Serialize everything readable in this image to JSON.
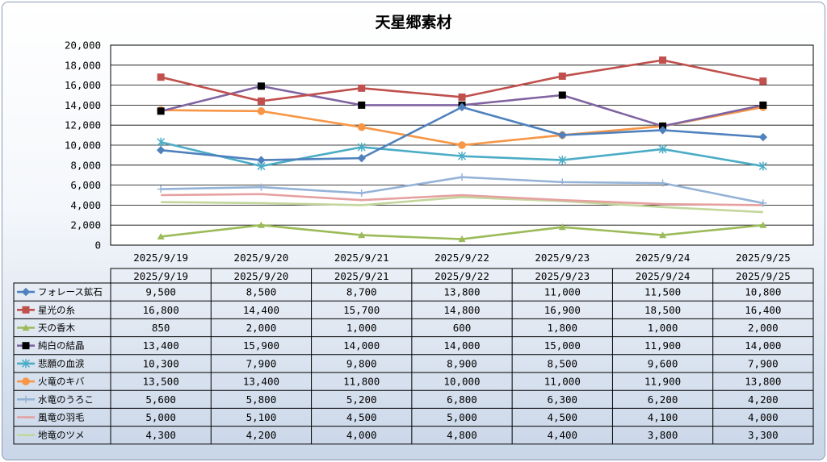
{
  "chart_data": {
    "type": "line",
    "title": "天星郷素材",
    "categories": [
      "2025/9/19",
      "2025/9/20",
      "2025/9/21",
      "2025/9/22",
      "2025/9/23",
      "2025/9/24",
      "2025/9/25"
    ],
    "ylim": [
      0,
      20000
    ],
    "yticks": [
      "0",
      "2,000",
      "4,000",
      "6,000",
      "8,000",
      "10,000",
      "12,000",
      "14,000",
      "16,000",
      "18,000",
      "20,000"
    ],
    "grid": true,
    "legend": "data-table",
    "series": [
      {
        "name": "フォレース鉱石",
        "color": "#4f81bd",
        "marker": "diamond",
        "values": [
          9500,
          8500,
          8700,
          13800,
          11000,
          11500,
          10800
        ],
        "labels": [
          "9,500",
          "8,500",
          "8,700",
          "13,800",
          "11,000",
          "11,500",
          "10,800"
        ]
      },
      {
        "name": "星光の糸",
        "color": "#c0504d",
        "marker": "square",
        "values": [
          16800,
          14400,
          15700,
          14800,
          16900,
          18500,
          16400
        ],
        "labels": [
          "16,800",
          "14,400",
          "15,700",
          "14,800",
          "16,900",
          "18,500",
          "16,400"
        ]
      },
      {
        "name": "天の香木",
        "color": "#9bbb59",
        "marker": "triangle",
        "values": [
          850,
          2000,
          1000,
          600,
          1800,
          1000,
          2000
        ],
        "labels": [
          "850",
          "2,000",
          "1,000",
          "600",
          "1,800",
          "1,000",
          "2,000"
        ]
      },
      {
        "name": "純白の結晶",
        "color": "#8064a2",
        "marker": "blacksquare",
        "values": [
          13400,
          15900,
          14000,
          14000,
          15000,
          11900,
          14000
        ],
        "labels": [
          "13,400",
          "15,900",
          "14,000",
          "14,000",
          "15,000",
          "11,900",
          "14,000"
        ]
      },
      {
        "name": "悲願の血涙",
        "color": "#4bacc6",
        "marker": "star",
        "values": [
          10300,
          7900,
          9800,
          8900,
          8500,
          9600,
          7900
        ],
        "labels": [
          "10,300",
          "7,900",
          "9,800",
          "8,900",
          "8,500",
          "9,600",
          "7,900"
        ]
      },
      {
        "name": "火竜のキバ",
        "color": "#f79646",
        "marker": "circle",
        "values": [
          13500,
          13400,
          11800,
          10000,
          11000,
          11900,
          13800
        ],
        "labels": [
          "13,500",
          "13,400",
          "11,800",
          "10,000",
          "11,000",
          "11,900",
          "13,800"
        ]
      },
      {
        "name": "水竜のうろこ",
        "color": "#95b3d7",
        "marker": "plus",
        "values": [
          5600,
          5800,
          5200,
          6800,
          6300,
          6200,
          4200
        ],
        "labels": [
          "5,600",
          "5,800",
          "5,200",
          "6,800",
          "6,300",
          "6,200",
          "4,200"
        ]
      },
      {
        "name": "風竜の羽毛",
        "color": "#e6a0a0",
        "marker": "none",
        "values": [
          5000,
          5100,
          4500,
          5000,
          4500,
          4100,
          4000
        ],
        "labels": [
          "5,000",
          "5,100",
          "4,500",
          "5,000",
          "4,500",
          "4,100",
          "4,000"
        ]
      },
      {
        "name": "地竜のツメ",
        "color": "#c3d69b",
        "marker": "none",
        "values": [
          4300,
          4200,
          4000,
          4800,
          4400,
          3800,
          3300
        ],
        "labels": [
          "4,300",
          "4,200",
          "4,000",
          "4,800",
          "4,400",
          "3,800",
          "3,300"
        ]
      }
    ]
  }
}
